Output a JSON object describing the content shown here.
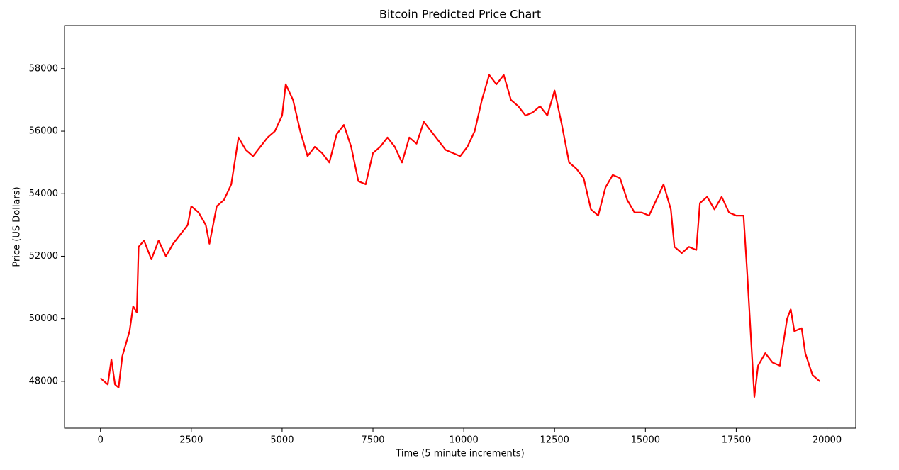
{
  "chart_data": {
    "type": "line",
    "title": "Bitcoin Predicted Price Chart",
    "x_label": "Time (5 minute increments)",
    "y_label": "Price (US Dollars)",
    "xlim": [
      -990,
      20790
    ],
    "ylim": [
      46500,
      59380
    ],
    "xticks": [
      0,
      2500,
      5000,
      7500,
      10000,
      12500,
      15000,
      17500,
      20000
    ],
    "yticks": [
      48000,
      50000,
      52000,
      54000,
      56000,
      58000
    ],
    "series": [
      {
        "color": "#ff0000",
        "x": [
          0,
          200,
          300,
          400,
          500,
          600,
          700,
          800,
          900,
          1000,
          1050,
          1200,
          1400,
          1600,
          1800,
          2000,
          2200,
          2400,
          2500,
          2700,
          2900,
          3000,
          3200,
          3400,
          3600,
          3800,
          4000,
          4200,
          4400,
          4600,
          4800,
          5000,
          5100,
          5300,
          5500,
          5700,
          5900,
          6100,
          6300,
          6500,
          6700,
          6900,
          7100,
          7300,
          7500,
          7700,
          7900,
          8100,
          8300,
          8500,
          8700,
          8900,
          9100,
          9300,
          9500,
          9700,
          9900,
          10100,
          10300,
          10500,
          10700,
          10900,
          11100,
          11300,
          11500,
          11700,
          11900,
          12100,
          12300,
          12500,
          12700,
          12900,
          13100,
          13300,
          13500,
          13700,
          13900,
          14100,
          14300,
          14500,
          14700,
          14900,
          15100,
          15300,
          15500,
          15700,
          15800,
          16000,
          16200,
          16400,
          16500,
          16700,
          16900,
          17100,
          17300,
          17500,
          17700,
          17800,
          17900,
          18000,
          18100,
          18300,
          18500,
          18700,
          18900,
          19000,
          19100,
          19300,
          19400,
          19600,
          19800
        ],
        "values": [
          48100,
          47900,
          48700,
          47900,
          47800,
          48800,
          49200,
          49600,
          50400,
          50200,
          52300,
          52500,
          51900,
          52500,
          52000,
          52400,
          52700,
          53000,
          53600,
          53400,
          53000,
          52400,
          53600,
          53800,
          54300,
          55800,
          55400,
          55200,
          55500,
          55800,
          56000,
          56500,
          57500,
          57000,
          56000,
          55200,
          55500,
          55300,
          55000,
          55900,
          56200,
          55500,
          54400,
          54300,
          55300,
          55500,
          55800,
          55500,
          55000,
          55800,
          55600,
          56300,
          56000,
          55700,
          55400,
          55300,
          55200,
          55500,
          56000,
          57000,
          57800,
          57500,
          57800,
          57000,
          56800,
          56500,
          56600,
          56800,
          56500,
          57300,
          56200,
          55000,
          54800,
          54500,
          53500,
          53300,
          54200,
          54600,
          54500,
          53800,
          53400,
          53400,
          53300,
          53800,
          54300,
          53500,
          52300,
          52100,
          52300,
          52200,
          53700,
          53900,
          53500,
          53900,
          53400,
          53300,
          53300,
          51500,
          49500,
          47500,
          48500,
          48900,
          48600,
          48500,
          50000,
          50300,
          49600,
          49700,
          48900,
          48200,
          48000
        ]
      }
    ]
  }
}
